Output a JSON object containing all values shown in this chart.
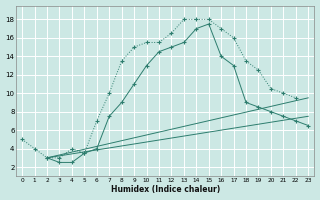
{
  "xlabel": "Humidex (Indice chaleur)",
  "background_color": "#cce8e4",
  "grid_color": "#ffffff",
  "line_color": "#2d7d6e",
  "xlim": [
    -0.5,
    23.5
  ],
  "ylim": [
    1,
    19.5
  ],
  "xticks": [
    0,
    1,
    2,
    3,
    4,
    5,
    6,
    7,
    8,
    9,
    10,
    11,
    12,
    13,
    14,
    15,
    16,
    17,
    18,
    19,
    20,
    21,
    22,
    23
  ],
  "yticks": [
    2,
    4,
    6,
    8,
    10,
    12,
    14,
    16,
    18
  ],
  "series1_x": [
    0,
    1,
    2,
    3,
    4,
    5,
    6,
    7,
    8,
    9,
    10,
    11,
    12,
    13,
    14,
    15,
    16,
    17,
    18,
    19,
    20,
    21,
    22
  ],
  "series1_y": [
    5,
    4,
    3,
    3,
    4,
    3.5,
    7,
    10,
    13.5,
    15,
    15.5,
    15.5,
    16.5,
    18,
    18,
    18,
    17,
    16,
    13.5,
    12.5,
    10.5,
    10,
    9.5
  ],
  "series2_x": [
    2,
    3,
    4,
    5,
    6,
    7,
    8,
    9,
    10,
    11,
    12,
    13,
    14,
    15,
    16,
    17,
    18,
    19,
    20,
    21,
    22,
    23
  ],
  "series2_y": [
    3,
    2.5,
    2.5,
    3.5,
    4,
    7.5,
    9,
    11,
    13,
    14.5,
    15,
    15.5,
    17,
    17.5,
    14,
    13,
    9,
    8.5,
    8,
    7.5,
    7,
    6.5
  ],
  "series3_x": [
    2,
    23
  ],
  "series3_y": [
    3,
    9.5
  ],
  "series4_x": [
    2,
    23
  ],
  "series4_y": [
    3,
    7.5
  ]
}
